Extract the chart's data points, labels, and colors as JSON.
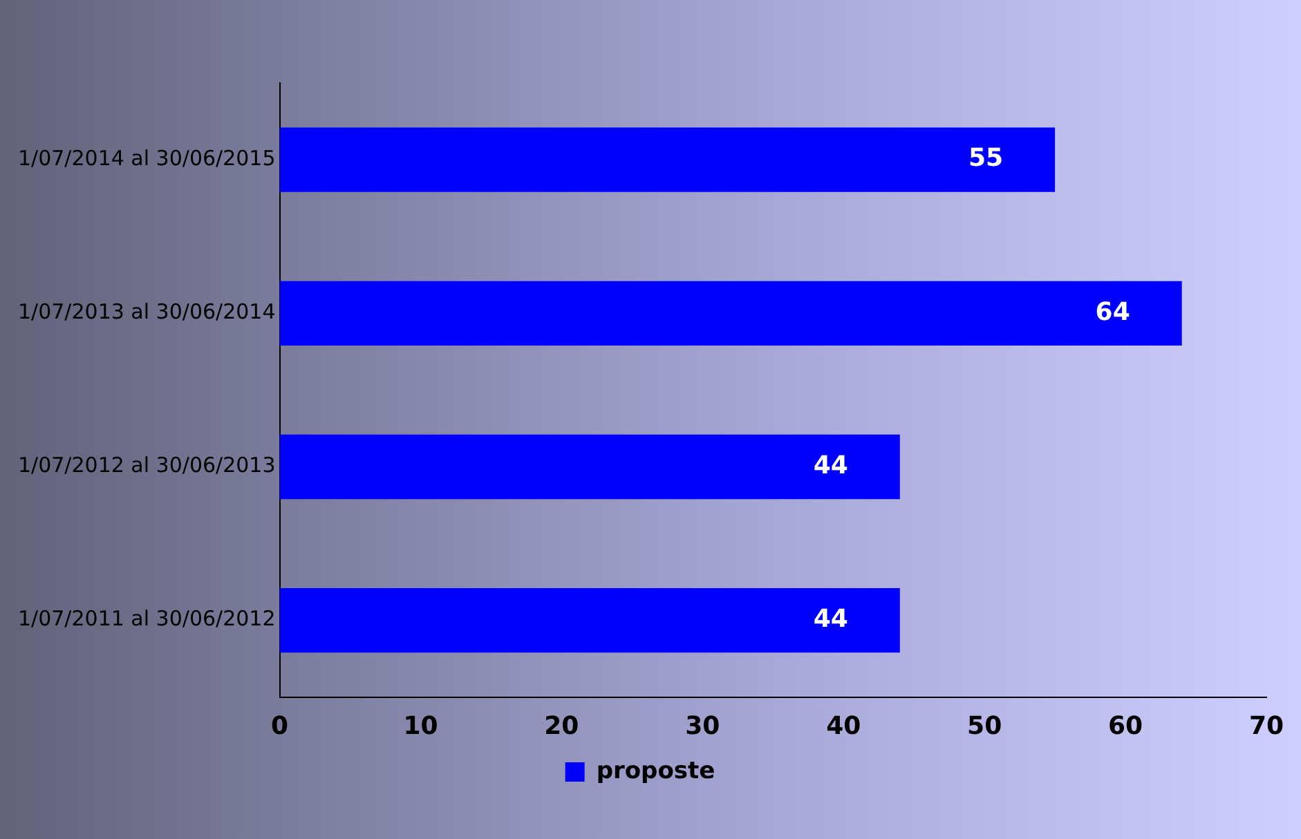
{
  "chart_data": {
    "type": "bar",
    "orientation": "horizontal",
    "categories": [
      "1/07/2014 al 30/06/2015",
      "1/07/2013 al 30/06/2014",
      "1/07/2012 al 30/06/2013",
      "1/07/2011 al 30/06/2012"
    ],
    "series": [
      {
        "name": "proposte",
        "color": "#0000ff",
        "values": [
          55,
          64,
          44,
          44
        ]
      }
    ],
    "xlim": [
      0,
      70
    ],
    "xticks": [
      0,
      10,
      20,
      30,
      40,
      50,
      60,
      70
    ],
    "grid": false,
    "legend": "bottom",
    "data_labels": true
  }
}
